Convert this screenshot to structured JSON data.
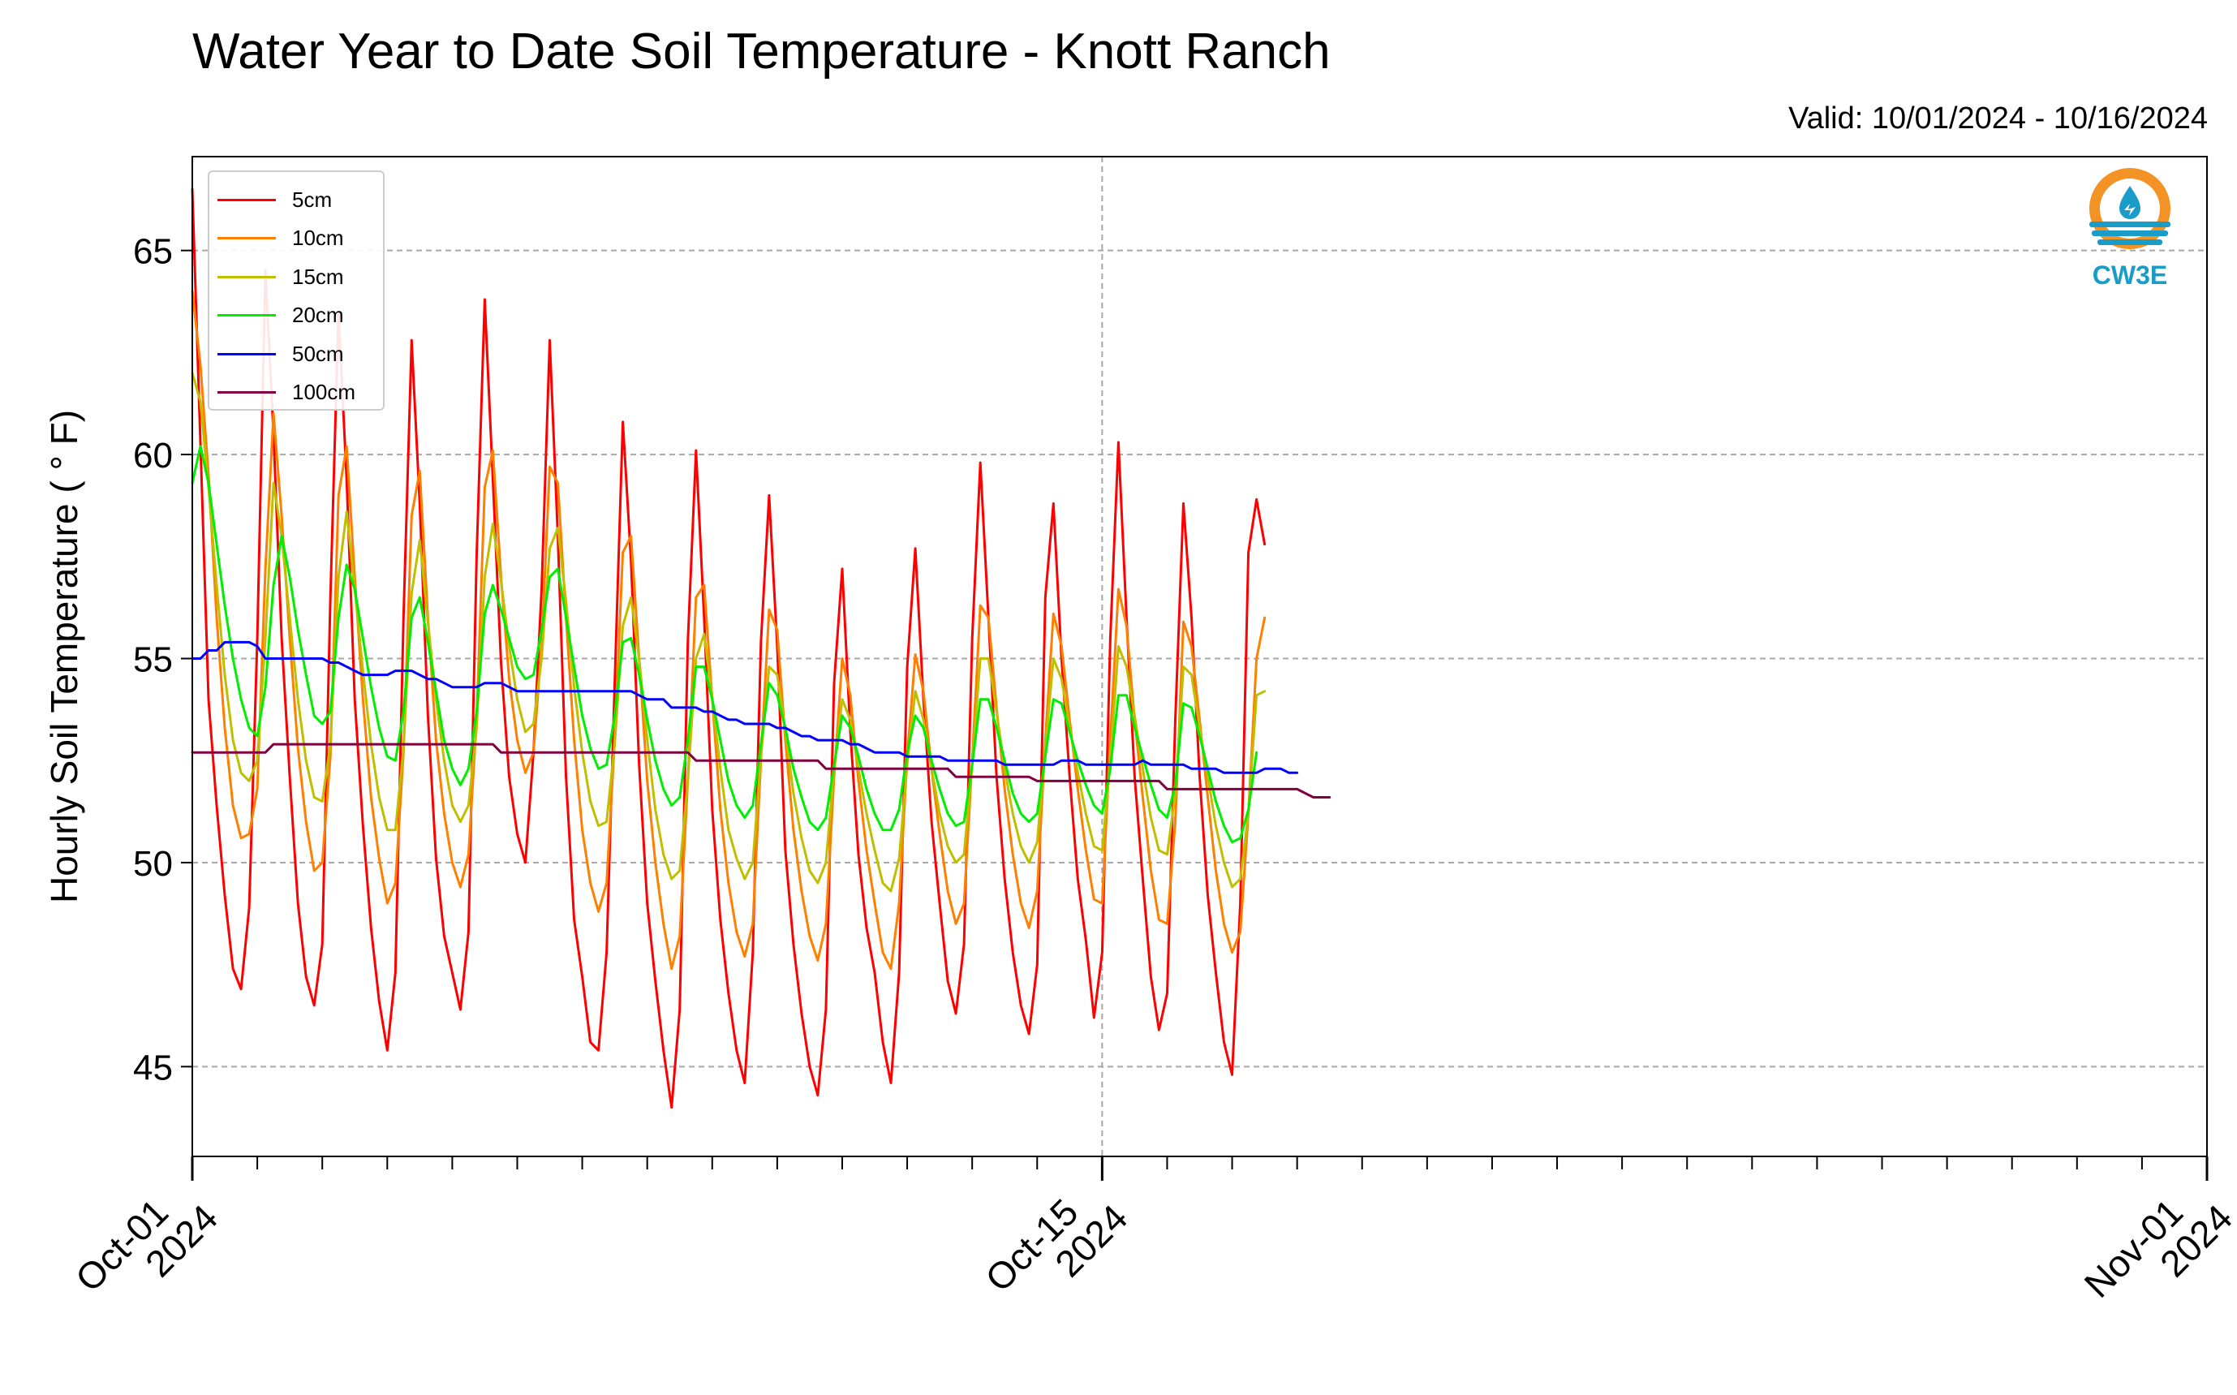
{
  "title": "Water Year to Date Soil Temperature - Knott Ranch",
  "subtitle": "Valid: 10/01/2024 - 10/16/2024",
  "logo": {
    "text": "CW3E",
    "color_orange": "#F39325",
    "color_blue": "#1A9CC9"
  },
  "chart_data": {
    "type": "line",
    "ylabel": "Hourly Soil Temperature ( ° F)",
    "xlabel": "",
    "ylim": [
      42.8,
      67.3
    ],
    "yticks": [
      45,
      50,
      55,
      60,
      65
    ],
    "xlim": [
      "2024-10-01",
      "2024-11-01"
    ],
    "x_major_ticks": [
      {
        "date": "2024-10-01",
        "label": [
          "Oct-01",
          "2024"
        ]
      },
      {
        "date": "2024-10-15",
        "label": [
          "Oct-15",
          "2024"
        ]
      },
      {
        "date": "2024-11-01",
        "label": [
          "Nov-01",
          "2024"
        ]
      }
    ],
    "x_minor_tick_interval_days": 1,
    "grid": true,
    "legend_position": "top-left",
    "series_meta": [
      {
        "name": "5cm",
        "color": "#ff0000"
      },
      {
        "name": "10cm",
        "color": "#ff8000"
      },
      {
        "name": "15cm",
        "color": "#bfbf00"
      },
      {
        "name": "20cm",
        "color": "#00ee00"
      },
      {
        "name": "50cm",
        "color": "#0000ff"
      },
      {
        "name": "100cm",
        "color": "#800040"
      }
    ],
    "data_start": "2024-10-01T00:00",
    "data_step_hours": 3,
    "series": [
      {
        "name": "5cm",
        "values": [
          66.5,
          60.3,
          54.0,
          51.4,
          49.2,
          47.4,
          46.9,
          48.9,
          55.5,
          64.5,
          60.5,
          55.5,
          52.1,
          49.0,
          47.2,
          46.5,
          48.0,
          56.5,
          63.5,
          59.4,
          54.0,
          50.9,
          48.4,
          46.6,
          45.4,
          47.3,
          56.0,
          62.8,
          58.8,
          53.6,
          50.1,
          48.2,
          47.3,
          46.4,
          48.3,
          57.5,
          63.8,
          59.4,
          54.9,
          52.1,
          50.7,
          50.0,
          52.7,
          56.7,
          62.8,
          58.0,
          52.1,
          48.6,
          47.2,
          45.6,
          45.4,
          47.8,
          54.4,
          60.8,
          57.4,
          52.4,
          49.0,
          47.1,
          45.4,
          44.0,
          46.4,
          55.4,
          60.1,
          56.0,
          51.3,
          48.6,
          46.8,
          45.4,
          44.6,
          47.8,
          55.4,
          59.0,
          55.3,
          50.3,
          48.0,
          46.3,
          45.0,
          44.3,
          46.4,
          54.4,
          57.2,
          53.2,
          50.2,
          48.4,
          47.3,
          45.6,
          44.6,
          47.3,
          54.8,
          57.7,
          54.0,
          51.0,
          49.0,
          47.1,
          46.3,
          48.0,
          55.5,
          59.8,
          56.0,
          52.1,
          49.6,
          47.8,
          46.5,
          45.8,
          47.5,
          56.5,
          58.8,
          55.0,
          52.1,
          49.6,
          48.1,
          46.2,
          47.8,
          55.5,
          60.3,
          56.0,
          52.1,
          49.6,
          47.2,
          45.9,
          46.8,
          53.5,
          58.8,
          56.0,
          52.1,
          49.2,
          47.3,
          45.6,
          44.8,
          49.0,
          57.6,
          58.9,
          57.8
        ]
      },
      {
        "name": "10cm",
        "values": [
          64.0,
          62.2,
          59.5,
          56.0,
          53.3,
          51.4,
          50.6,
          50.7,
          51.8,
          57.2,
          61.0,
          58.5,
          55.5,
          52.8,
          51.0,
          49.8,
          50.0,
          52.6,
          59.0,
          60.2,
          57.0,
          54.0,
          51.6,
          50.1,
          49.0,
          49.5,
          52.7,
          58.5,
          59.6,
          56.0,
          53.0,
          51.2,
          50.0,
          49.4,
          50.2,
          53.5,
          59.2,
          60.1,
          57.0,
          54.5,
          53.0,
          52.2,
          52.7,
          55.3,
          59.7,
          59.3,
          56.0,
          53.0,
          50.8,
          49.5,
          48.8,
          49.5,
          53.0,
          57.6,
          58.0,
          55.0,
          52.0,
          50.0,
          48.5,
          47.4,
          48.2,
          52.0,
          56.5,
          56.8,
          54.0,
          51.3,
          49.5,
          48.3,
          47.7,
          48.5,
          52.5,
          56.2,
          55.7,
          53.0,
          50.8,
          49.3,
          48.2,
          47.6,
          48.5,
          52.1,
          55.0,
          54.1,
          52.0,
          50.3,
          49.0,
          47.8,
          47.4,
          49.0,
          52.6,
          55.1,
          54.2,
          52.3,
          50.7,
          49.3,
          48.5,
          49.0,
          52.5,
          56.3,
          56.0,
          53.8,
          51.8,
          50.2,
          49.0,
          48.4,
          49.3,
          53.0,
          56.1,
          55.3,
          53.5,
          51.8,
          50.3,
          49.1,
          49.0,
          53.0,
          56.7,
          55.8,
          53.5,
          51.6,
          49.8,
          48.6,
          48.5,
          51.0,
          55.9,
          55.3,
          53.5,
          51.6,
          49.8,
          48.5,
          47.8,
          48.3,
          51.2,
          55.0,
          56.0
        ]
      },
      {
        "name": "15cm",
        "values": [
          62.0,
          61.3,
          59.2,
          56.8,
          54.6,
          53.0,
          52.2,
          52.0,
          52.5,
          55.5,
          59.3,
          58.0,
          56.0,
          54.0,
          52.5,
          51.6,
          51.5,
          52.9,
          57.0,
          58.6,
          56.7,
          54.7,
          52.9,
          51.6,
          50.8,
          50.8,
          52.8,
          56.6,
          57.9,
          55.9,
          54.0,
          52.5,
          51.4,
          51.0,
          51.4,
          53.3,
          57.0,
          58.3,
          56.9,
          55.3,
          54.0,
          53.2,
          53.4,
          55.0,
          57.7,
          58.2,
          56.4,
          54.3,
          52.7,
          51.5,
          50.9,
          51.0,
          52.9,
          55.8,
          56.5,
          55.0,
          53.0,
          51.3,
          50.2,
          49.6,
          49.8,
          52.0,
          55.0,
          55.6,
          54.0,
          52.3,
          50.8,
          50.1,
          49.6,
          50.0,
          52.6,
          54.8,
          54.6,
          53.2,
          51.7,
          50.6,
          49.8,
          49.5,
          50.0,
          52.3,
          54.0,
          53.5,
          52.3,
          51.2,
          50.3,
          49.5,
          49.3,
          50.1,
          52.4,
          54.2,
          53.5,
          52.3,
          51.2,
          50.4,
          50.0,
          50.2,
          52.4,
          55.0,
          55.0,
          53.7,
          52.3,
          51.2,
          50.4,
          50.0,
          50.5,
          52.8,
          55.0,
          54.5,
          53.3,
          52.2,
          51.2,
          50.4,
          50.3,
          52.5,
          55.3,
          54.8,
          53.6,
          52.3,
          51.1,
          50.3,
          50.2,
          51.7,
          54.8,
          54.6,
          53.3,
          52.1,
          50.9,
          50.0,
          49.4,
          49.6,
          51.2,
          54.1,
          54.2
        ]
      },
      {
        "name": "20cm",
        "values": [
          59.3,
          60.2,
          59.3,
          57.8,
          56.3,
          55.0,
          54.0,
          53.3,
          53.1,
          54.3,
          56.8,
          58.0,
          57.0,
          55.7,
          54.6,
          53.6,
          53.4,
          53.7,
          56.0,
          57.3,
          56.7,
          55.5,
          54.3,
          53.3,
          52.6,
          52.5,
          53.7,
          56.0,
          56.5,
          55.4,
          54.2,
          53.0,
          52.3,
          51.9,
          52.3,
          53.7,
          56.1,
          56.8,
          56.2,
          55.5,
          54.8,
          54.5,
          54.6,
          55.7,
          57.0,
          57.2,
          56.0,
          54.8,
          53.6,
          52.8,
          52.3,
          52.4,
          53.6,
          55.4,
          55.5,
          54.6,
          53.5,
          52.5,
          51.8,
          51.4,
          51.6,
          53.0,
          54.8,
          54.8,
          54.0,
          53.0,
          52.0,
          51.4,
          51.1,
          51.4,
          52.9,
          54.4,
          54.1,
          53.3,
          52.3,
          51.6,
          51.0,
          50.8,
          51.1,
          52.4,
          53.6,
          53.3,
          52.6,
          51.8,
          51.2,
          50.8,
          50.8,
          51.3,
          52.7,
          53.6,
          53.3,
          52.5,
          51.8,
          51.2,
          50.9,
          51.0,
          52.4,
          54.0,
          54.0,
          53.3,
          52.5,
          51.7,
          51.2,
          51.0,
          51.2,
          52.6,
          54.0,
          53.9,
          53.2,
          52.5,
          51.9,
          51.4,
          51.2,
          52.3,
          54.1,
          54.1,
          53.3,
          52.6,
          51.9,
          51.3,
          51.1,
          51.9,
          53.9,
          53.8,
          53.1,
          52.3,
          51.5,
          50.9,
          50.5,
          50.6,
          51.3,
          52.7
        ]
      },
      {
        "name": "50cm",
        "values": [
          55.0,
          55.0,
          55.2,
          55.2,
          55.4,
          55.4,
          55.4,
          55.4,
          55.3,
          55.0,
          55.0,
          55.0,
          55.0,
          55.0,
          55.0,
          55.0,
          55.0,
          54.9,
          54.9,
          54.8,
          54.7,
          54.6,
          54.6,
          54.6,
          54.6,
          54.7,
          54.7,
          54.7,
          54.6,
          54.5,
          54.5,
          54.4,
          54.3,
          54.3,
          54.3,
          54.3,
          54.4,
          54.4,
          54.4,
          54.3,
          54.2,
          54.2,
          54.2,
          54.2,
          54.2,
          54.2,
          54.2,
          54.2,
          54.2,
          54.2,
          54.2,
          54.2,
          54.2,
          54.2,
          54.2,
          54.1,
          54.0,
          54.0,
          54.0,
          53.8,
          53.8,
          53.8,
          53.8,
          53.7,
          53.7,
          53.6,
          53.5,
          53.5,
          53.4,
          53.4,
          53.4,
          53.4,
          53.3,
          53.3,
          53.2,
          53.1,
          53.1,
          53.0,
          53.0,
          53.0,
          53.0,
          52.9,
          52.9,
          52.8,
          52.7,
          52.7,
          52.7,
          52.7,
          52.6,
          52.6,
          52.6,
          52.6,
          52.6,
          52.5,
          52.5,
          52.5,
          52.5,
          52.5,
          52.5,
          52.5,
          52.4,
          52.4,
          52.4,
          52.4,
          52.4,
          52.4,
          52.4,
          52.5,
          52.5,
          52.5,
          52.4,
          52.4,
          52.4,
          52.4,
          52.4,
          52.4,
          52.4,
          52.5,
          52.4,
          52.4,
          52.4,
          52.4,
          52.4,
          52.3,
          52.3,
          52.3,
          52.3,
          52.2,
          52.2,
          52.2,
          52.2,
          52.2,
          52.3,
          52.3,
          52.3,
          52.2,
          52.2
        ]
      },
      {
        "name": "100cm",
        "values": [
          52.7,
          52.7,
          52.7,
          52.7,
          52.7,
          52.7,
          52.7,
          52.7,
          52.7,
          52.7,
          52.9,
          52.9,
          52.9,
          52.9,
          52.9,
          52.9,
          52.9,
          52.9,
          52.9,
          52.9,
          52.9,
          52.9,
          52.9,
          52.9,
          52.9,
          52.9,
          52.9,
          52.9,
          52.9,
          52.9,
          52.9,
          52.9,
          52.9,
          52.9,
          52.9,
          52.9,
          52.9,
          52.9,
          52.7,
          52.7,
          52.7,
          52.7,
          52.7,
          52.7,
          52.7,
          52.7,
          52.7,
          52.7,
          52.7,
          52.7,
          52.7,
          52.7,
          52.7,
          52.7,
          52.7,
          52.7,
          52.7,
          52.7,
          52.7,
          52.7,
          52.7,
          52.7,
          52.5,
          52.5,
          52.5,
          52.5,
          52.5,
          52.5,
          52.5,
          52.5,
          52.5,
          52.5,
          52.5,
          52.5,
          52.5,
          52.5,
          52.5,
          52.5,
          52.3,
          52.3,
          52.3,
          52.3,
          52.3,
          52.3,
          52.3,
          52.3,
          52.3,
          52.3,
          52.3,
          52.3,
          52.3,
          52.3,
          52.3,
          52.3,
          52.1,
          52.1,
          52.1,
          52.1,
          52.1,
          52.1,
          52.1,
          52.1,
          52.1,
          52.1,
          52.0,
          52.0,
          52.0,
          52.0,
          52.0,
          52.0,
          52.0,
          52.0,
          52.0,
          52.0,
          52.0,
          52.0,
          52.0,
          52.0,
          52.0,
          52.0,
          51.8,
          51.8,
          51.8,
          51.8,
          51.8,
          51.8,
          51.8,
          51.8,
          51.8,
          51.8,
          51.8,
          51.8,
          51.8,
          51.8,
          51.8,
          51.8,
          51.8,
          51.7,
          51.6,
          51.6,
          51.6
        ]
      }
    ]
  }
}
